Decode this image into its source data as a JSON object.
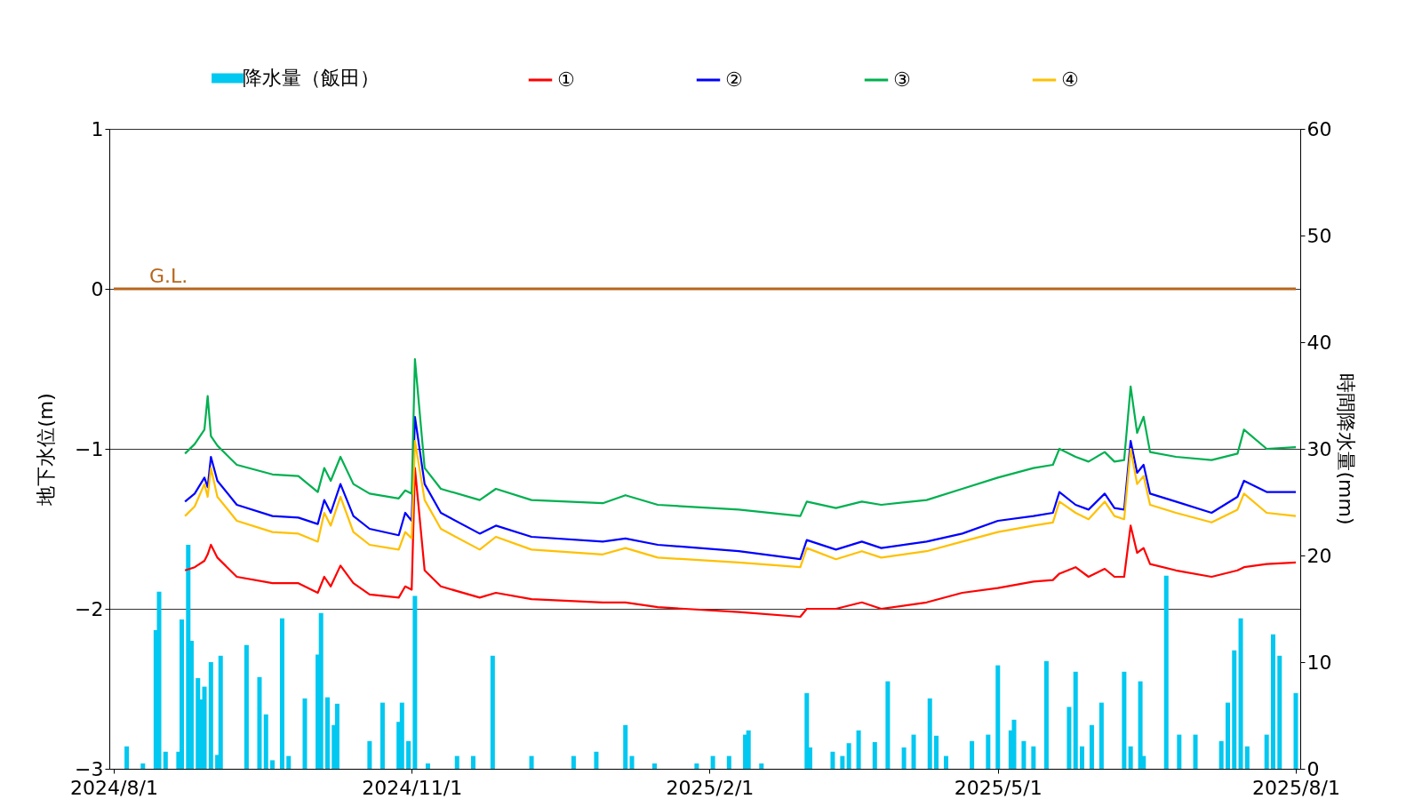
{
  "chart_data": {
    "type": "line",
    "ylabel": "地下水位(m)",
    "y2label": "時間降水量(mm)",
    "xlim": [
      "2024-08-01",
      "2025-08-01"
    ],
    "xticks": [
      {
        "value": "2024-08-01",
        "label": "2024/8/1"
      },
      {
        "value": "2024-11-01",
        "label": "2024/11/1"
      },
      {
        "value": "2025-02-01",
        "label": "2025/2/1"
      },
      {
        "value": "2025-05-01",
        "label": "2025/5/1"
      },
      {
        "value": "2025-08-01",
        "label": "2025/8/1"
      }
    ],
    "ylim": [
      -3,
      1
    ],
    "yticks": [
      -3,
      -2,
      -1,
      0,
      1
    ],
    "y2lim": [
      0,
      60
    ],
    "y2ticks": [
      0,
      10,
      20,
      30,
      40,
      50,
      60
    ],
    "grid": "y",
    "legend": "top",
    "ref_lines": [
      {
        "axis": "y",
        "value": 0,
        "label": "G.L.",
        "color": "#b8651b"
      }
    ],
    "x": [
      "2024-08-23",
      "2024-08-26",
      "2024-08-29",
      "2024-08-30",
      "2024-08-31",
      "2024-09-02",
      "2024-09-08",
      "2024-09-19",
      "2024-09-27",
      "2024-10-03",
      "2024-10-05",
      "2024-10-07",
      "2024-10-10",
      "2024-10-14",
      "2024-10-19",
      "2024-10-28",
      "2024-10-30",
      "2024-11-01",
      "2024-11-02",
      "2024-11-05",
      "2024-11-10",
      "2024-11-22",
      "2024-11-27",
      "2024-12-08",
      "2024-12-30",
      "2025-01-06",
      "2025-01-16",
      "2025-02-10",
      "2025-03-01",
      "2025-03-03",
      "2025-03-12",
      "2025-03-20",
      "2025-03-26",
      "2025-04-09",
      "2025-04-20",
      "2025-05-01",
      "2025-05-12",
      "2025-05-18",
      "2025-05-20",
      "2025-05-25",
      "2025-05-29",
      "2025-06-03",
      "2025-06-06",
      "2025-06-09",
      "2025-06-11",
      "2025-06-13",
      "2025-06-15",
      "2025-06-17",
      "2025-06-25",
      "2025-07-06",
      "2025-07-14",
      "2025-07-16",
      "2025-07-23",
      "2025-08-01"
    ],
    "series": [
      {
        "name": "降水量（飯田）",
        "type": "bar",
        "axis": "y2",
        "color": "#00c8f0",
        "x": [
          "2024-08-05",
          "2024-08-10",
          "2024-08-14",
          "2024-08-15",
          "2024-08-17",
          "2024-08-21",
          "2024-08-22",
          "2024-08-24",
          "2024-08-25",
          "2024-08-27",
          "2024-08-28",
          "2024-08-29",
          "2024-08-31",
          "2024-09-02",
          "2024-09-03",
          "2024-09-11",
          "2024-09-15",
          "2024-09-17",
          "2024-09-19",
          "2024-09-22",
          "2024-09-24",
          "2024-09-29",
          "2024-10-03",
          "2024-10-04",
          "2024-10-06",
          "2024-10-08",
          "2024-10-09",
          "2024-10-19",
          "2024-10-23",
          "2024-10-28",
          "2024-10-29",
          "2024-10-31",
          "2024-11-02",
          "2024-11-06",
          "2024-11-15",
          "2024-11-20",
          "2024-11-26",
          "2024-12-08",
          "2024-12-21",
          "2024-12-28",
          "2025-01-06",
          "2025-01-08",
          "2025-01-15",
          "2025-01-28",
          "2025-02-02",
          "2025-02-07",
          "2025-02-12",
          "2025-02-13",
          "2025-02-17",
          "2025-03-03",
          "2025-03-04",
          "2025-03-11",
          "2025-03-14",
          "2025-03-16",
          "2025-03-19",
          "2025-03-24",
          "2025-03-28",
          "2025-04-02",
          "2025-04-05",
          "2025-04-10",
          "2025-04-12",
          "2025-04-15",
          "2025-04-23",
          "2025-04-28",
          "2025-05-01",
          "2025-05-05",
          "2025-05-06",
          "2025-05-09",
          "2025-05-12",
          "2025-05-16",
          "2025-05-23",
          "2025-05-25",
          "2025-05-27",
          "2025-05-30",
          "2025-06-02",
          "2025-06-09",
          "2025-06-11",
          "2025-06-14",
          "2025-06-15",
          "2025-06-22",
          "2025-06-26",
          "2025-07-01",
          "2025-07-09",
          "2025-07-11",
          "2025-07-13",
          "2025-07-15",
          "2025-07-17",
          "2025-07-23",
          "2025-07-25",
          "2025-07-27",
          "2025-08-01"
        ],
        "values": [
          2.1,
          0.5,
          13,
          16.6,
          1.6,
          1.6,
          14,
          21,
          12,
          8.5,
          6.5,
          7.7,
          10,
          1.3,
          10.6,
          11.6,
          8.6,
          5.1,
          0.8,
          14.1,
          1.2,
          6.6,
          10.7,
          14.6,
          6.7,
          4.1,
          6.1,
          2.6,
          6.2,
          4.4,
          6.2,
          2.6,
          16.2,
          0.5,
          1.2,
          1.2,
          10.6,
          1.2,
          1.2,
          1.6,
          4.1,
          1.2,
          0.5,
          0.5,
          1.2,
          1.2,
          3.2,
          3.6,
          0.5,
          7.1,
          2,
          1.6,
          1.2,
          2.4,
          3.6,
          2.5,
          8.2,
          2,
          3.2,
          6.6,
          3.1,
          1.2,
          2.6,
          3.2,
          9.7,
          3.6,
          4.6,
          2.6,
          2.1,
          10.1,
          5.8,
          9.1,
          2.1,
          4.1,
          6.2,
          9.1,
          2.1,
          8.2,
          1.2,
          18.1,
          3.2,
          3.2,
          2.6,
          6.2,
          11.1,
          14.1,
          2.1,
          3.2,
          12.6,
          10.6,
          7.1
        ]
      },
      {
        "name": "①",
        "color": "#ff0000",
        "values": [
          -1.76,
          -1.74,
          -1.7,
          -1.66,
          -1.6,
          -1.68,
          -1.8,
          -1.84,
          -1.84,
          -1.9,
          -1.8,
          -1.86,
          -1.73,
          -1.84,
          -1.91,
          -1.93,
          -1.86,
          -1.88,
          -1.12,
          -1.76,
          -1.86,
          -1.93,
          -1.9,
          -1.94,
          -1.96,
          -1.96,
          -1.99,
          -2.02,
          -2.05,
          -2.0,
          -2.0,
          -1.96,
          -2.0,
          -1.96,
          -1.9,
          -1.87,
          -1.83,
          -1.82,
          -1.78,
          -1.74,
          -1.8,
          -1.75,
          -1.8,
          -1.8,
          -1.48,
          -1.65,
          -1.62,
          -1.72,
          -1.76,
          -1.8,
          -1.76,
          -1.74,
          -1.72,
          -1.71
        ]
      },
      {
        "name": "②",
        "color": "#0000ff",
        "values": [
          -1.33,
          -1.28,
          -1.18,
          -1.24,
          -1.05,
          -1.2,
          -1.35,
          -1.42,
          -1.43,
          -1.47,
          -1.32,
          -1.4,
          -1.22,
          -1.42,
          -1.5,
          -1.54,
          -1.4,
          -1.45,
          -0.8,
          -1.22,
          -1.4,
          -1.53,
          -1.48,
          -1.55,
          -1.58,
          -1.56,
          -1.6,
          -1.64,
          -1.69,
          -1.57,
          -1.63,
          -1.58,
          -1.62,
          -1.58,
          -1.53,
          -1.45,
          -1.42,
          -1.4,
          -1.27,
          -1.35,
          -1.38,
          -1.28,
          -1.37,
          -1.38,
          -0.95,
          -1.15,
          -1.1,
          -1.28,
          -1.33,
          -1.4,
          -1.3,
          -1.2,
          -1.27,
          -1.27
        ]
      },
      {
        "name": "③",
        "color": "#00b050",
        "values": [
          -1.03,
          -0.97,
          -0.88,
          -0.67,
          -0.92,
          -0.98,
          -1.1,
          -1.16,
          -1.17,
          -1.27,
          -1.12,
          -1.2,
          -1.05,
          -1.22,
          -1.28,
          -1.31,
          -1.26,
          -1.28,
          -0.44,
          -1.12,
          -1.25,
          -1.32,
          -1.25,
          -1.32,
          -1.34,
          -1.29,
          -1.35,
          -1.38,
          -1.42,
          -1.33,
          -1.37,
          -1.33,
          -1.35,
          -1.32,
          -1.25,
          -1.18,
          -1.12,
          -1.1,
          -1.0,
          -1.05,
          -1.08,
          -1.02,
          -1.08,
          -1.07,
          -0.61,
          -0.9,
          -0.8,
          -1.02,
          -1.05,
          -1.07,
          -1.03,
          -0.88,
          -1.0,
          -0.99
        ]
      },
      {
        "name": "④",
        "color": "#ffc000",
        "values": [
          -1.42,
          -1.36,
          -1.22,
          -1.3,
          -1.12,
          -1.3,
          -1.45,
          -1.52,
          -1.53,
          -1.58,
          -1.4,
          -1.48,
          -1.3,
          -1.52,
          -1.6,
          -1.63,
          -1.52,
          -1.56,
          -0.95,
          -1.32,
          -1.5,
          -1.63,
          -1.55,
          -1.63,
          -1.66,
          -1.62,
          -1.68,
          -1.71,
          -1.74,
          -1.62,
          -1.69,
          -1.64,
          -1.68,
          -1.64,
          -1.58,
          -1.52,
          -1.48,
          -1.46,
          -1.33,
          -1.4,
          -1.44,
          -1.33,
          -1.42,
          -1.44,
          -1.0,
          -1.22,
          -1.17,
          -1.35,
          -1.4,
          -1.46,
          -1.38,
          -1.28,
          -1.4,
          -1.42
        ]
      }
    ]
  }
}
